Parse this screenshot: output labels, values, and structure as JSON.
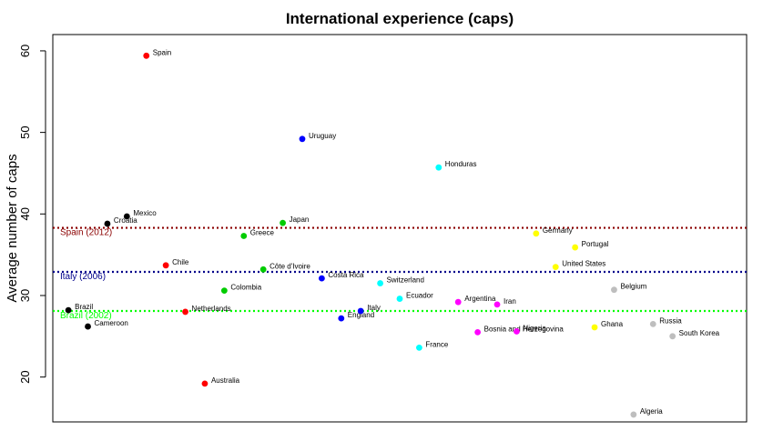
{
  "chart_data": {
    "type": "scatter",
    "title": "International experience (caps)",
    "xlabel": "",
    "ylabel": "Average number of caps",
    "ylim": [
      14.5,
      62
    ],
    "xlim": [
      0.2,
      35.8
    ],
    "yticks": [
      20,
      30,
      40,
      50,
      60
    ],
    "grid": false,
    "legend": "none",
    "points": [
      {
        "label": "Brazil",
        "x": 1,
        "y": 28.2,
        "color": "#000000"
      },
      {
        "label": "Cameroon",
        "x": 2,
        "y": 26.2,
        "color": "#000000"
      },
      {
        "label": "Croatia",
        "x": 3,
        "y": 38.8,
        "color": "#000000"
      },
      {
        "label": "Mexico",
        "x": 4,
        "y": 39.7,
        "color": "#000000"
      },
      {
        "label": "Spain",
        "x": 5,
        "y": 59.4,
        "color": "#ff0000"
      },
      {
        "label": "Chile",
        "x": 6,
        "y": 33.7,
        "color": "#ff0000"
      },
      {
        "label": "Netherlands",
        "x": 7,
        "y": 28.0,
        "color": "#ff0000"
      },
      {
        "label": "Australia",
        "x": 8,
        "y": 19.2,
        "color": "#ff0000"
      },
      {
        "label": "Colombia",
        "x": 9,
        "y": 30.6,
        "color": "#00cc00"
      },
      {
        "label": "Greece",
        "x": 10,
        "y": 37.3,
        "color": "#00cc00"
      },
      {
        "label": "Côte d'Ivoire",
        "x": 11,
        "y": 33.2,
        "color": "#00cc00"
      },
      {
        "label": "Japan",
        "x": 12,
        "y": 38.9,
        "color": "#00cc00"
      },
      {
        "label": "Uruguay",
        "x": 13,
        "y": 49.2,
        "color": "#0000ff"
      },
      {
        "label": "Costa Rica",
        "x": 14,
        "y": 32.1,
        "color": "#0000ff"
      },
      {
        "label": "England",
        "x": 15,
        "y": 27.2,
        "color": "#0000ff"
      },
      {
        "label": "Italy",
        "x": 16,
        "y": 28.1,
        "color": "#0000ff"
      },
      {
        "label": "Switzerland",
        "x": 17,
        "y": 31.5,
        "color": "#00ffff"
      },
      {
        "label": "Ecuador",
        "x": 18,
        "y": 29.6,
        "color": "#00ffff"
      },
      {
        "label": "France",
        "x": 19,
        "y": 23.6,
        "color": "#00ffff"
      },
      {
        "label": "Honduras",
        "x": 20,
        "y": 45.7,
        "color": "#00ffff"
      },
      {
        "label": "Argentina",
        "x": 21,
        "y": 29.2,
        "color": "#ff00ff"
      },
      {
        "label": "Bosnia and Herzegovina",
        "x": 22,
        "y": 25.5,
        "color": "#ff00ff"
      },
      {
        "label": "Iran",
        "x": 23,
        "y": 28.9,
        "color": "#ff00ff"
      },
      {
        "label": "Nigeria",
        "x": 24,
        "y": 25.6,
        "color": "#ff00ff"
      },
      {
        "label": "Germany",
        "x": 25,
        "y": 37.6,
        "color": "#ffff00"
      },
      {
        "label": "United States",
        "x": 26,
        "y": 33.5,
        "color": "#ffff00"
      },
      {
        "label": "Portugal",
        "x": 27,
        "y": 35.9,
        "color": "#ffff00"
      },
      {
        "label": "Ghana",
        "x": 28,
        "y": 26.1,
        "color": "#ffff00"
      },
      {
        "label": "Belgium",
        "x": 29,
        "y": 30.7,
        "color": "#bebebe"
      },
      {
        "label": "Algeria",
        "x": 30,
        "y": 15.4,
        "color": "#bebebe"
      },
      {
        "label": "Russia",
        "x": 31,
        "y": 26.5,
        "color": "#bebebe"
      },
      {
        "label": "South Korea",
        "x": 32,
        "y": 25.0,
        "color": "#bebebe"
      }
    ],
    "reference_lines": [
      {
        "label": "Spain (2012)",
        "y": 38.3,
        "color": "#8b0000"
      },
      {
        "label": "Italy (2006)",
        "y": 32.9,
        "color": "#00008b"
      },
      {
        "label": "Brazil (2002)",
        "y": 28.1,
        "color": "#00ff00"
      }
    ]
  }
}
